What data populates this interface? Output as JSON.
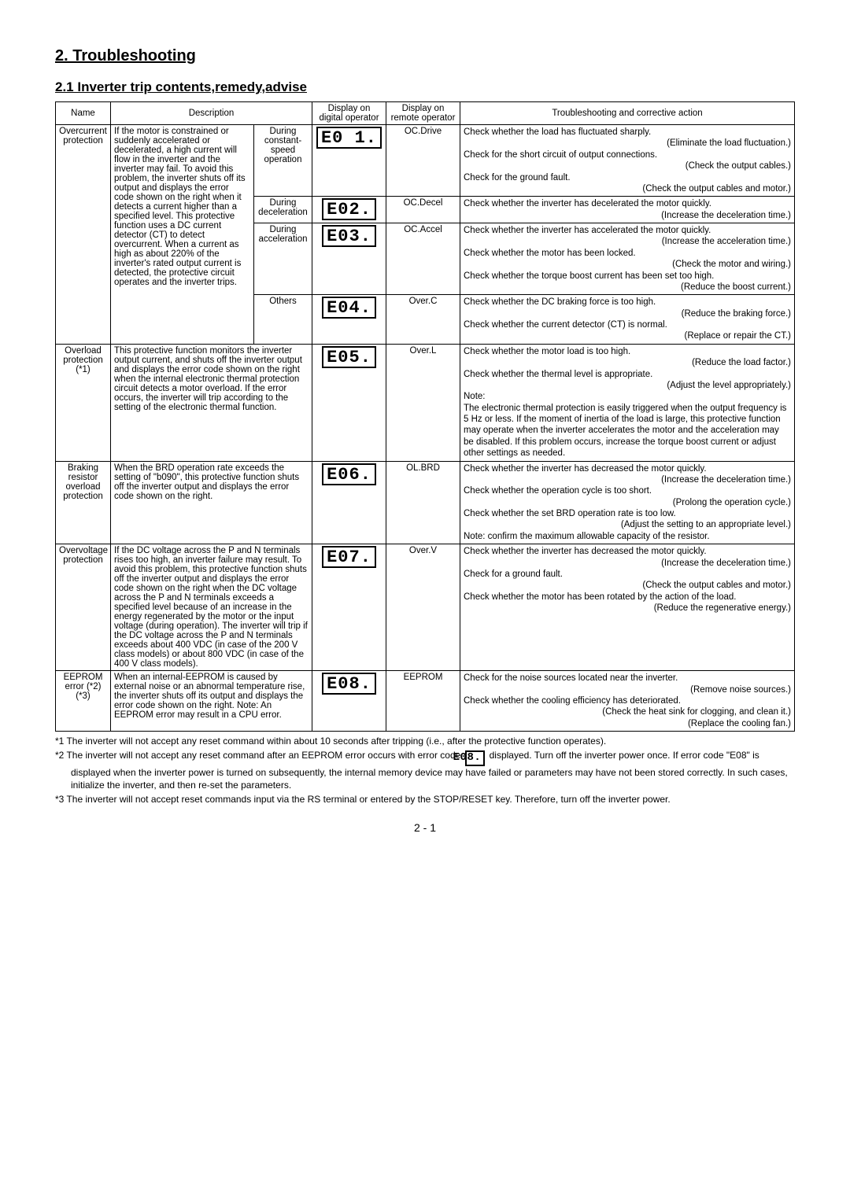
{
  "titles": {
    "section": "2. Troubleshooting",
    "subsection": "2.1 Inverter trip contents,remedy,advise"
  },
  "headers": {
    "name": "Name",
    "description": "Description",
    "display_digital": "Display on digital operator",
    "display_remote": "Display on remote operator",
    "action": "Troubleshooting and corrective action"
  },
  "segment_codes": {
    "e01": "E0 1.",
    "e02": "E02.",
    "e03": "E03.",
    "e04": "E04.",
    "e05": "E05.",
    "e06": "E06.",
    "e07": "E07.",
    "e08": "E08.",
    "e08_inline": "E08."
  },
  "rows": {
    "overcurrent": {
      "name": "Overcurrent protection",
      "desc": "If the motor is constrained or suddenly accelerated or decelerated, a high current will flow in the inverter and the inverter may fail. To avoid this problem, the inverter shuts off its output and displays the error code shown on the right when it detects a current higher than a specified level. This protective function uses a DC current detector (CT) to detect overcurrent. When a current as high as about 220% of the inverter's rated output current is detected, the protective circuit operates and the inverter trips.",
      "conds": {
        "drive": "During constant-speed operation",
        "decel": "During deceleration",
        "accel": "During acceleration",
        "others": "Others"
      },
      "remote": {
        "drive": "OC.Drive",
        "decel": "OC.Decel",
        "accel": "OC.Accel",
        "others": "Over.C"
      },
      "actions": {
        "drive": {
          "l1": "Check whether the load has fluctuated sharply.",
          "r1": "(Eliminate the load fluctuation.)",
          "l2": "Check for the short circuit of output connections.",
          "r2": "(Check the output cables.)",
          "l3": "Check for the ground fault.",
          "r3": "(Check the output cables and motor.)"
        },
        "decel": {
          "l1": "Check whether the inverter has decelerated the motor quickly.",
          "r1": "(Increase the deceleration time.)"
        },
        "accel": {
          "l1": "Check whether the inverter has accelerated the motor quickly.",
          "r1": "(Increase the acceleration time.)",
          "l2": "Check whether the motor has been locked.",
          "r2": "(Check the motor and wiring.)",
          "l3": "Check whether the torque boost current has been set too high.",
          "r3": "(Reduce the boost current.)"
        },
        "others": {
          "l1": "Check whether the DC braking force is too high.",
          "r1": "(Reduce the braking force.)",
          "l2": "Check whether the current detector (CT) is normal.",
          "r2": "(Replace or repair the CT.)"
        }
      }
    },
    "overload": {
      "name": "Overload protection (*1)",
      "desc": "This protective function monitors the inverter output current, and shuts off the inverter output and displays the error code shown on the right when the internal electronic thermal protection circuit detects a motor overload. If the error occurs, the inverter will trip according to the setting of the electronic thermal function.",
      "remote": "Over.L",
      "action": {
        "l1": "Check whether the motor load is too high.",
        "r1": "(Reduce the load factor.)",
        "l2": "Check whether the thermal level is appropriate.",
        "r2": "(Adjust the level appropriately.)",
        "note": "Note:\nThe electronic thermal protection is easily triggered when the output frequency is 5 Hz or less. If the moment of inertia of the load is large, this protective function may operate when the inverter accelerates the motor and the acceleration may be disabled. If this problem occurs, increase the torque boost current or adjust other settings as needed."
      }
    },
    "braking": {
      "name": "Braking resistor overload protection",
      "desc": "When the BRD operation rate exceeds the setting of \"b090\", this protective function shuts off the inverter output and displays the error code shown on the right.",
      "remote": "OL.BRD",
      "action": {
        "l1": "Check whether the inverter has decreased the motor quickly.",
        "r1": "(Increase the deceleration time.)",
        "l2": "Check whether the operation cycle is too short.",
        "r2": "(Prolong the operation cycle.)",
        "l3": "Check whether the set BRD operation rate is too low.",
        "r3": "(Adjust the setting to an appropriate level.)",
        "l4": "Note: confirm the maximum allowable capacity of the resistor."
      }
    },
    "overvoltage": {
      "name": "Overvoltage protection",
      "desc": "If the DC voltage across the P and N terminals rises too high, an inverter failure may result. To avoid this problem, this protective function shuts off the inverter output and displays the error code shown on the right when the DC voltage across the P and N terminals exceeds a specified level because of an increase in the energy regenerated by the motor or the input voltage (during operation). The inverter will trip if the DC voltage across the P and N terminals exceeds about 400 VDC (in case of the 200 V class models) or about 800 VDC (in case of the 400 V class models).",
      "remote": "Over.V",
      "action": {
        "l1": "Check whether the inverter has decreased the motor quickly.",
        "r1": "(Increase the deceleration time.)",
        "l2": "Check for a ground fault.",
        "r2": "(Check the output cables and motor.)",
        "l3": "Check whether the motor has been rotated by the action of the load.",
        "r3": "(Reduce the regenerative energy.)"
      }
    },
    "eeprom": {
      "name": "EEPROM error (*2) (*3)",
      "desc": "When an internal-EEPROM is caused by external noise or an abnormal temperature rise, the inverter shuts off its output and displays the error code shown on the right. Note: An EEPROM error may result in a CPU error.",
      "remote": "EEPROM",
      "action": {
        "l1": "Check for the noise sources located near the inverter.",
        "r1": "(Remove noise sources.)",
        "l2": "Check whether the cooling efficiency has deteriorated.",
        "r2": "(Check the heat sink for clogging, and clean it.)",
        "r3": "(Replace the cooling fan.)"
      }
    }
  },
  "footnotes": {
    "n1": "*1  The inverter will not accept any reset command within about 10 seconds after tripping (i.e., after the protective function operates).",
    "n2a": "*2  The inverter will not accept any reset command after an EEPROM error occurs with error code ",
    "n2b": " displayed. Turn off the inverter power once. If error code \"E08\" is displayed when the inverter power is turned on subsequently, the internal memory device may have failed or parameters may have not been stored correctly. In such cases, initialize the inverter, and then re-set the parameters.",
    "n3": "*3  The inverter will not accept reset commands input via the RS terminal or entered by the STOP/RESET key. Therefore, turn off the inverter power."
  },
  "page_number": "2 - 1"
}
